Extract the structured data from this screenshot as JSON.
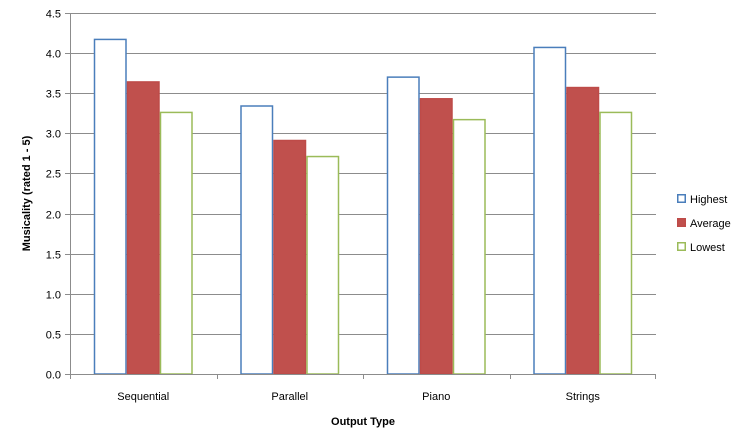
{
  "chart_data": {
    "type": "bar",
    "title": "",
    "xlabel": "Output Type",
    "ylabel": "Musicality (rated 1 - 5)",
    "categories": [
      "Sequential",
      "Parallel",
      "Piano",
      "Strings"
    ],
    "series": [
      {
        "name": "Highest",
        "values": [
          4.18,
          3.35,
          3.71,
          4.08
        ],
        "stroke": "#4a7ebb",
        "fill": "#ffffff"
      },
      {
        "name": "Average",
        "values": [
          3.65,
          2.92,
          3.44,
          3.58
        ],
        "stroke": "#be4b48",
        "fill": "#c0504d"
      },
      {
        "name": "Lowest",
        "values": [
          3.27,
          2.72,
          3.18,
          3.27
        ],
        "stroke": "#9bbb59",
        "fill": "#ffffff"
      }
    ],
    "ylim": [
      0,
      4.5
    ],
    "yticks": [
      "0.0",
      "0.5",
      "1.0",
      "1.5",
      "2.0",
      "2.5",
      "3.0",
      "3.5",
      "4.0",
      "4.5"
    ],
    "grid": true,
    "legend": "right"
  }
}
